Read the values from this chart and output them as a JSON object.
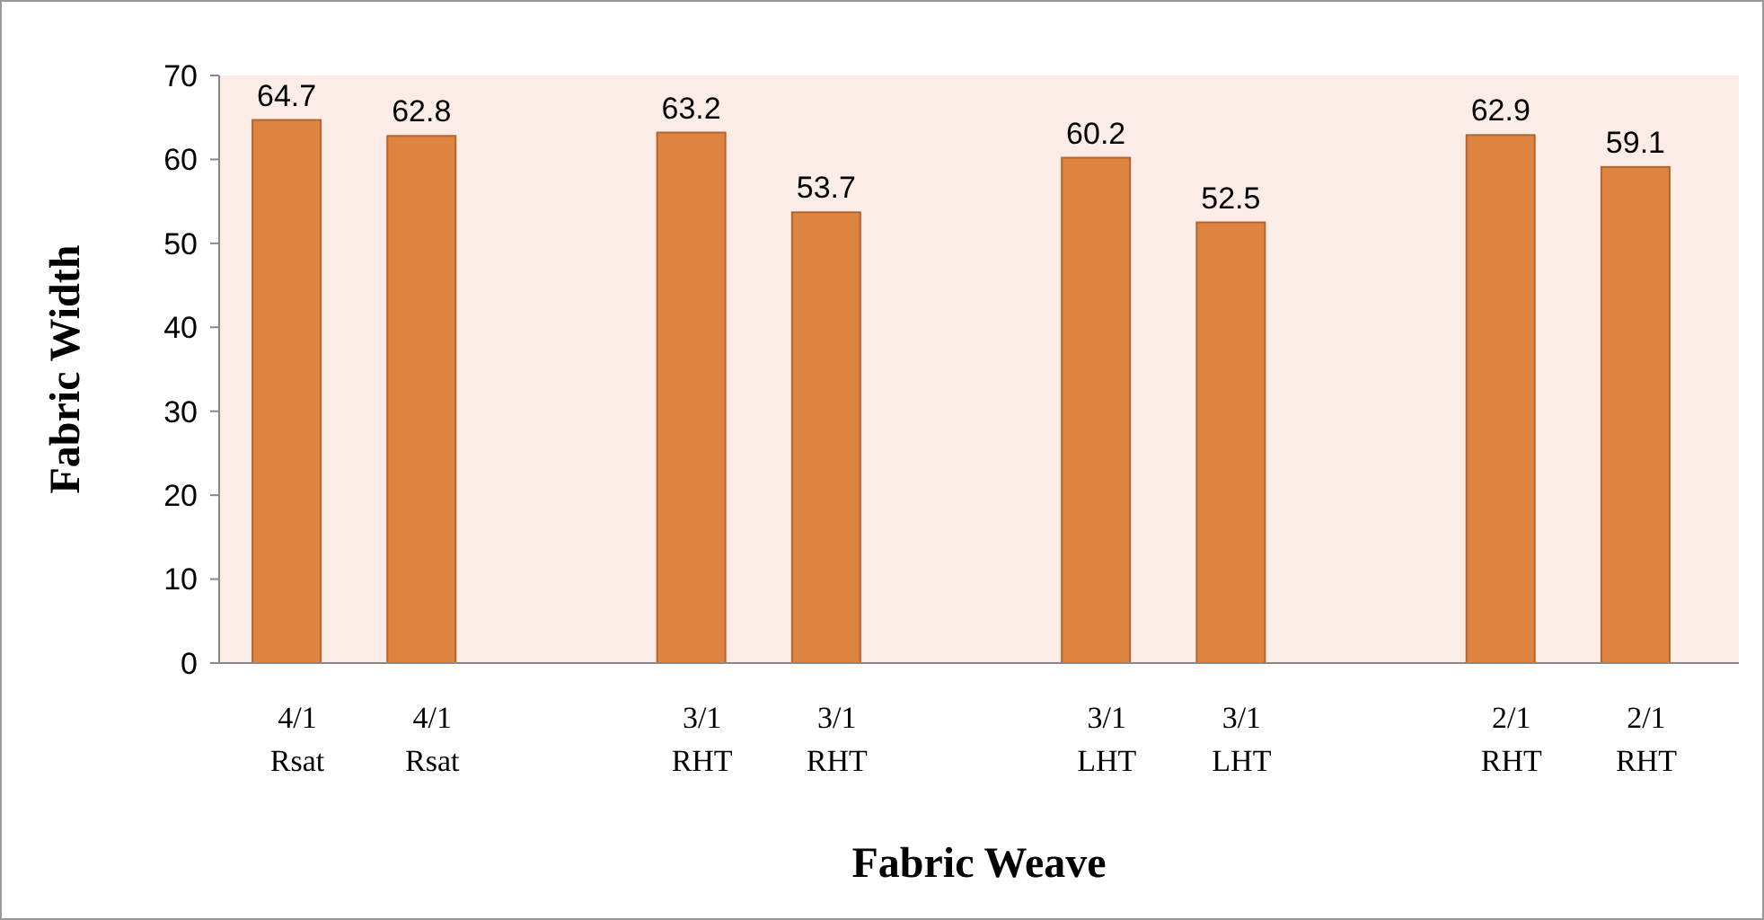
{
  "chart_data": {
    "type": "bar",
    "xlabel": "Fabric Weave",
    "ylabel": "Fabric Width",
    "categories": [
      "4/1 Rsat",
      "4/1 Rsat",
      null,
      "3/1 RHT",
      "3/1 RHT",
      null,
      "3/1 LHT",
      "3/1 LHT",
      null,
      "2/1 RHT",
      "2/1 RHT"
    ],
    "values": [
      64.7,
      62.8,
      null,
      63.2,
      53.7,
      null,
      60.2,
      52.5,
      null,
      62.9,
      59.1
    ],
    "color": "#dd8440",
    "ylim": [
      0,
      70
    ],
    "yticks": [
      0,
      10,
      20,
      30,
      40,
      50,
      60,
      70
    ],
    "grid": false,
    "data_labels": true
  }
}
